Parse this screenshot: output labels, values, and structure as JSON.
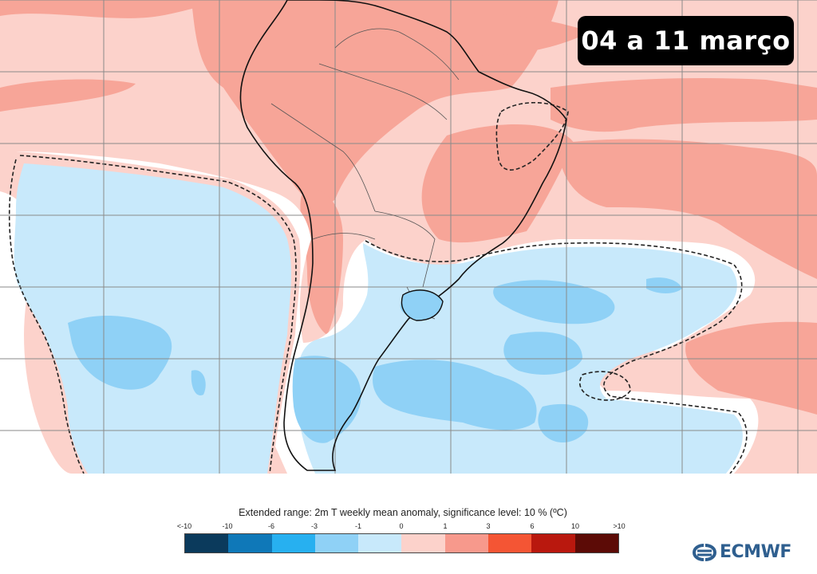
{
  "badge": {
    "date_range": "04 a 11 março"
  },
  "caption": "Extended range: 2m T weekly mean anomaly, significance level: 10 % (ºC)",
  "legend": {
    "ticks": [
      "<-10",
      "-10",
      "-6",
      "-3",
      "-1",
      "0",
      "1",
      "3",
      "6",
      "10",
      ">10"
    ],
    "colors": [
      "#0b3a5c",
      "#0f78b8",
      "#27b0f0",
      "#8fd1f6",
      "#c8e9fb",
      "#fcd2cb",
      "#f7998c",
      "#f45534",
      "#b9180e",
      "#5c0b06"
    ]
  },
  "logo": {
    "text": "ECMWF",
    "icon": "ecmwf-logo-icon"
  },
  "map": {
    "colors": {
      "warm_light": "#fcd2cb",
      "warm_medium": "#f7a598",
      "cool_light": "#c8e9fb",
      "cool_medium": "#8fd1f6",
      "neutral": "#ffffff",
      "grid": "#8a8a8a",
      "coast": "#111111"
    }
  }
}
